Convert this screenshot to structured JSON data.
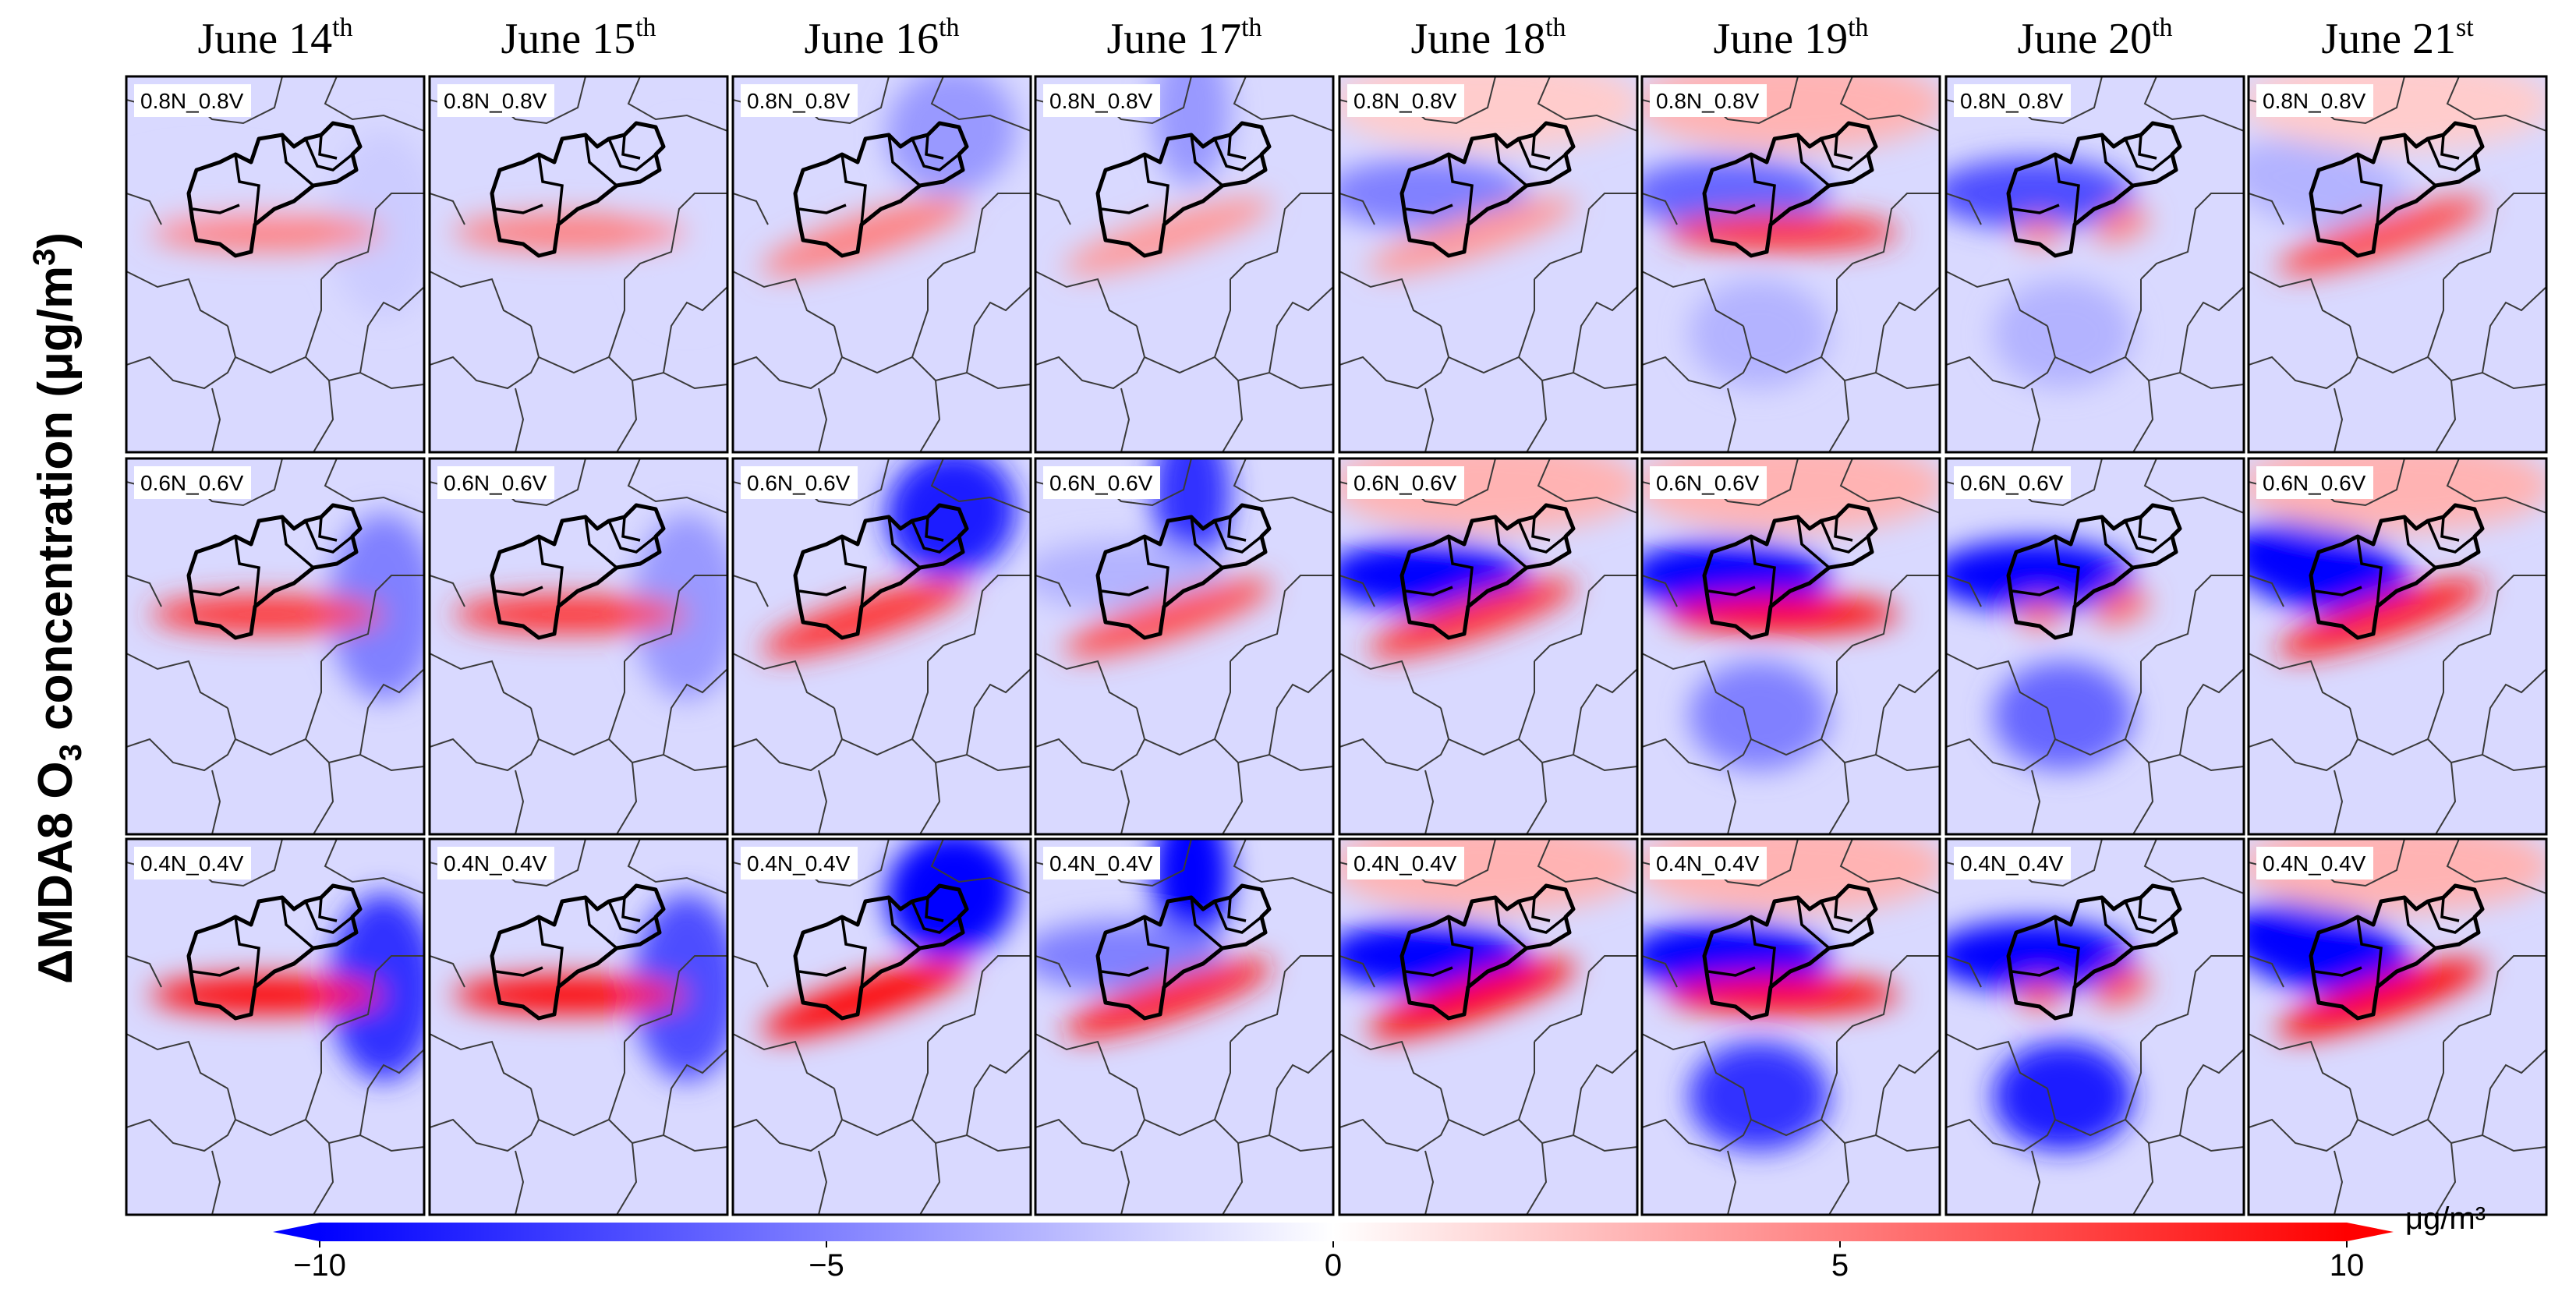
{
  "chart_data": {
    "type": "heatmap",
    "ylabel": {
      "prefix": "ΔMDA8 O",
      "sub": "3",
      "mid": " concentration (μg/m",
      "sup": "3",
      "suffix": ")"
    },
    "columns": [
      {
        "base": "June 14",
        "suffix": "th"
      },
      {
        "base": "June 15",
        "suffix": "th"
      },
      {
        "base": "June 16",
        "suffix": "th"
      },
      {
        "base": "June 17",
        "suffix": "th"
      },
      {
        "base": "June 18",
        "suffix": "th"
      },
      {
        "base": "June 19",
        "suffix": "th"
      },
      {
        "base": "June 20",
        "suffix": "th"
      },
      {
        "base": "June 21",
        "suffix": "st"
      }
    ],
    "rows": [
      "0.8N_0.8V",
      "0.6N_0.6V",
      "0.4N_0.4V"
    ],
    "colorbar": {
      "min": -10,
      "max": 10,
      "ticks": [
        -10,
        -5,
        0,
        5,
        10
      ],
      "tick_labels": [
        "−10",
        "−5",
        "0",
        "5",
        "10"
      ],
      "unit": "μg/m³",
      "low_color": "#0000ff",
      "mid_color": "#ffffff",
      "high_color": "#ff0000",
      "extend": "both"
    },
    "features": [
      [
        [
          {
            "v": 5,
            "k": "band"
          },
          {
            "v": -2,
            "k": "east"
          },
          {
            "v": 0,
            "k": "none"
          },
          {
            "v": 0,
            "k": "none"
          },
          {
            "v": 3,
            "k": "band"
          },
          {
            "v": -1.5,
            "k": "west"
          },
          {
            "v": 0,
            "k": "none"
          },
          {
            "v": 0,
            "k": "none"
          }
        ],
        [
          {
            "v": 5,
            "k": "band"
          },
          {
            "v": -1.5,
            "k": "east"
          },
          {
            "v": 0,
            "k": "none"
          },
          {
            "v": 0,
            "k": "none"
          },
          {
            "v": 0,
            "k": "none"
          },
          {
            "v": 0,
            "k": "none"
          },
          {
            "v": 0,
            "k": "none"
          },
          {
            "v": 0,
            "k": "none"
          }
        ],
        [
          {
            "v": 5,
            "k": "diag"
          },
          {
            "v": -4,
            "k": "ne"
          },
          {
            "v": 0,
            "k": "none"
          },
          {
            "v": 0,
            "k": "none"
          },
          {
            "v": 0,
            "k": "none"
          },
          {
            "v": 0,
            "k": "none"
          },
          {
            "v": 0,
            "k": "none"
          },
          {
            "v": 0,
            "k": "none"
          }
        ],
        [
          {
            "v": 4,
            "k": "diag"
          },
          {
            "v": -4,
            "k": "n"
          },
          {
            "v": 0,
            "k": "none"
          },
          {
            "v": 0,
            "k": "none"
          },
          {
            "v": 0,
            "k": "none"
          },
          {
            "v": 0,
            "k": "none"
          },
          {
            "v": 0,
            "k": "none"
          },
          {
            "v": 0,
            "k": "none"
          }
        ],
        [
          {
            "v": 4,
            "k": "diag"
          },
          {
            "v": -5,
            "k": "west"
          },
          {
            "v": 2,
            "k": "north"
          },
          {
            "v": 0,
            "k": "none"
          },
          {
            "v": 0,
            "k": "none"
          },
          {
            "v": 0,
            "k": "none"
          },
          {
            "v": 0,
            "k": "none"
          },
          {
            "v": 0,
            "k": "none"
          }
        ],
        [
          {
            "v": 8,
            "k": "band"
          },
          {
            "v": -6,
            "k": "west"
          },
          {
            "v": 3,
            "k": "north"
          },
          {
            "v": -3,
            "k": "south"
          },
          {
            "v": 0,
            "k": "none"
          },
          {
            "v": 0,
            "k": "none"
          },
          {
            "v": 0,
            "k": "none"
          },
          {
            "v": 0,
            "k": "none"
          }
        ],
        [
          {
            "v": 5,
            "k": "spots"
          },
          {
            "v": -7,
            "k": "west"
          },
          {
            "v": -3,
            "k": "south"
          },
          {
            "v": 0,
            "k": "none"
          },
          {
            "v": 0,
            "k": "none"
          },
          {
            "v": 0,
            "k": "none"
          },
          {
            "v": 0,
            "k": "none"
          },
          {
            "v": 0,
            "k": "none"
          }
        ],
        [
          {
            "v": 7,
            "k": "diag"
          },
          {
            "v": -3,
            "k": "nw"
          },
          {
            "v": 2,
            "k": "north"
          },
          {
            "v": 0,
            "k": "none"
          },
          {
            "v": 0,
            "k": "none"
          },
          {
            "v": 0,
            "k": "none"
          },
          {
            "v": 0,
            "k": "none"
          },
          {
            "v": 0,
            "k": "none"
          }
        ]
      ],
      [
        [
          {
            "v": 8,
            "k": "band"
          },
          {
            "v": -5,
            "k": "east"
          },
          {
            "v": 0,
            "k": "none"
          },
          {
            "v": 0,
            "k": "none"
          },
          {
            "v": 0,
            "k": "none"
          },
          {
            "v": 0,
            "k": "none"
          },
          {
            "v": 0,
            "k": "none"
          },
          {
            "v": 0,
            "k": "none"
          }
        ],
        [
          {
            "v": 8,
            "k": "band"
          },
          {
            "v": -4,
            "k": "east"
          },
          {
            "v": 0,
            "k": "none"
          },
          {
            "v": 0,
            "k": "none"
          },
          {
            "v": 0,
            "k": "none"
          },
          {
            "v": 0,
            "k": "none"
          },
          {
            "v": 0,
            "k": "none"
          },
          {
            "v": 0,
            "k": "none"
          }
        ],
        [
          {
            "v": 8,
            "k": "diag"
          },
          {
            "v": -9,
            "k": "ne"
          },
          {
            "v": 0,
            "k": "none"
          },
          {
            "v": 0,
            "k": "none"
          },
          {
            "v": 0,
            "k": "none"
          },
          {
            "v": 0,
            "k": "none"
          },
          {
            "v": 0,
            "k": "none"
          },
          {
            "v": 0,
            "k": "none"
          }
        ],
        [
          {
            "v": 7,
            "k": "diag"
          },
          {
            "v": -8,
            "k": "n"
          },
          {
            "v": -3,
            "k": "west"
          },
          {
            "v": 0,
            "k": "none"
          },
          {
            "v": 0,
            "k": "none"
          },
          {
            "v": 0,
            "k": "none"
          },
          {
            "v": 0,
            "k": "none"
          },
          {
            "v": 0,
            "k": "none"
          }
        ],
        [
          {
            "v": 8,
            "k": "diag"
          },
          {
            "v": -10,
            "k": "west"
          },
          {
            "v": 3,
            "k": "north"
          },
          {
            "v": 0,
            "k": "none"
          },
          {
            "v": 0,
            "k": "none"
          },
          {
            "v": 0,
            "k": "none"
          },
          {
            "v": 0,
            "k": "none"
          },
          {
            "v": 0,
            "k": "none"
          }
        ],
        [
          {
            "v": 10,
            "k": "band"
          },
          {
            "v": -10,
            "k": "west"
          },
          {
            "v": 3,
            "k": "north"
          },
          {
            "v": -5,
            "k": "south"
          },
          {
            "v": 0,
            "k": "none"
          },
          {
            "v": 0,
            "k": "none"
          },
          {
            "v": 0,
            "k": "none"
          },
          {
            "v": 0,
            "k": "none"
          }
        ],
        [
          {
            "v": 6,
            "k": "spots"
          },
          {
            "v": -10,
            "k": "west"
          },
          {
            "v": -6,
            "k": "south"
          },
          {
            "v": 0,
            "k": "none"
          },
          {
            "v": 0,
            "k": "none"
          },
          {
            "v": 0,
            "k": "none"
          },
          {
            "v": 0,
            "k": "none"
          },
          {
            "v": 0,
            "k": "none"
          }
        ],
        [
          {
            "v": 9,
            "k": "diag"
          },
          {
            "v": -10,
            "k": "nw"
          },
          {
            "v": 3,
            "k": "north"
          },
          {
            "v": 0,
            "k": "none"
          },
          {
            "v": 0,
            "k": "none"
          },
          {
            "v": 0,
            "k": "none"
          },
          {
            "v": 0,
            "k": "none"
          },
          {
            "v": 0,
            "k": "none"
          }
        ]
      ],
      [
        [
          {
            "v": 10,
            "k": "band"
          },
          {
            "v": -8,
            "k": "east"
          },
          {
            "v": 0,
            "k": "none"
          },
          {
            "v": 0,
            "k": "none"
          },
          {
            "v": 0,
            "k": "none"
          },
          {
            "v": 0,
            "k": "none"
          },
          {
            "v": 0,
            "k": "none"
          },
          {
            "v": 0,
            "k": "none"
          }
        ],
        [
          {
            "v": 10,
            "k": "band"
          },
          {
            "v": -7,
            "k": "east"
          },
          {
            "v": 0,
            "k": "none"
          },
          {
            "v": 0,
            "k": "none"
          },
          {
            "v": 0,
            "k": "none"
          },
          {
            "v": 0,
            "k": "none"
          },
          {
            "v": 0,
            "k": "none"
          },
          {
            "v": 0,
            "k": "none"
          }
        ],
        [
          {
            "v": 10,
            "k": "diag"
          },
          {
            "v": -10,
            "k": "ne"
          },
          {
            "v": 0,
            "k": "none"
          },
          {
            "v": 0,
            "k": "none"
          },
          {
            "v": 0,
            "k": "none"
          },
          {
            "v": 0,
            "k": "none"
          },
          {
            "v": 0,
            "k": "none"
          },
          {
            "v": 0,
            "k": "none"
          }
        ],
        [
          {
            "v": 9,
            "k": "diag"
          },
          {
            "v": -10,
            "k": "n"
          },
          {
            "v": -5,
            "k": "west"
          },
          {
            "v": 0,
            "k": "none"
          },
          {
            "v": 0,
            "k": "none"
          },
          {
            "v": 0,
            "k": "none"
          },
          {
            "v": 0,
            "k": "none"
          },
          {
            "v": 0,
            "k": "none"
          }
        ],
        [
          {
            "v": 10,
            "k": "diag"
          },
          {
            "v": -10,
            "k": "west"
          },
          {
            "v": 3,
            "k": "north"
          },
          {
            "v": 0,
            "k": "none"
          },
          {
            "v": 0,
            "k": "none"
          },
          {
            "v": 0,
            "k": "none"
          },
          {
            "v": 0,
            "k": "none"
          },
          {
            "v": 0,
            "k": "none"
          }
        ],
        [
          {
            "v": 10,
            "k": "band"
          },
          {
            "v": -10,
            "k": "west"
          },
          {
            "v": 3,
            "k": "north"
          },
          {
            "v": -8,
            "k": "south"
          },
          {
            "v": 0,
            "k": "none"
          },
          {
            "v": 0,
            "k": "none"
          },
          {
            "v": 0,
            "k": "none"
          },
          {
            "v": 0,
            "k": "none"
          }
        ],
        [
          {
            "v": 7,
            "k": "spots"
          },
          {
            "v": -10,
            "k": "west"
          },
          {
            "v": -9,
            "k": "south"
          },
          {
            "v": 0,
            "k": "none"
          },
          {
            "v": 0,
            "k": "none"
          },
          {
            "v": 0,
            "k": "none"
          },
          {
            "v": 0,
            "k": "none"
          },
          {
            "v": 0,
            "k": "none"
          }
        ],
        [
          {
            "v": 10,
            "k": "diag"
          },
          {
            "v": -10,
            "k": "nw"
          },
          {
            "v": 3,
            "k": "north"
          },
          {
            "v": 0,
            "k": "none"
          },
          {
            "v": 0,
            "k": "none"
          },
          {
            "v": 0,
            "k": "none"
          },
          {
            "v": 0,
            "k": "none"
          },
          {
            "v": 0,
            "k": "none"
          }
        ]
      ]
    ],
    "background_value": -1.5
  }
}
